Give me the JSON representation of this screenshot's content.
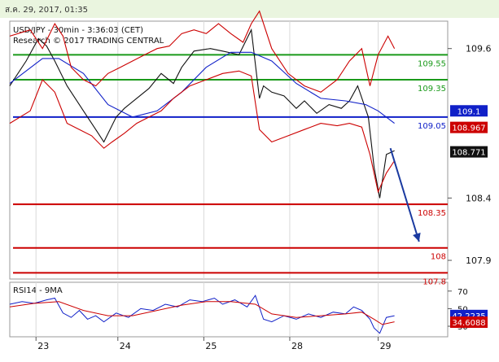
{
  "header": {
    "timestamp": "ส.ค. 29, 2017, 01:35"
  },
  "chart_data": {
    "type": "line",
    "instrument_label": "USD/JPY - 30min - 3:36:03 (CET)",
    "copyright": "Research © 2017 TRADING CENTRAL",
    "price_axis": {
      "range": [
        107.75,
        109.82
      ],
      "ticks": [
        "109.6",
        "108.4",
        "107.9"
      ]
    },
    "x_axis": {
      "range": [
        0,
        5.35
      ],
      "labels": [
        {
          "x": 0.4,
          "text": "23"
        },
        {
          "x": 1.4,
          "text": "24"
        },
        {
          "x": 2.45,
          "text": "25"
        },
        {
          "x": 3.5,
          "text": "28"
        },
        {
          "x": 4.58,
          "text": "29"
        }
      ]
    },
    "levels": [
      {
        "value": 109.55,
        "label": "109.55",
        "color": "#1a9a1a"
      },
      {
        "value": 109.35,
        "label": "109.35",
        "color": "#1a9a1a"
      },
      {
        "value": 109.05,
        "label": "109.05",
        "color": "#1020c8"
      },
      {
        "value": 108.35,
        "label": "108.35",
        "color": "#cc0000"
      },
      {
        "value": 108.0,
        "label": "108",
        "color": "#cc0000"
      },
      {
        "value": 107.8,
        "label": "107.8",
        "color": "#cc0000"
      }
    ],
    "price_tags": [
      {
        "value": 109.1,
        "label": "109.1",
        "color": "#1020c8"
      },
      {
        "value": 108.967,
        "label": "108.967",
        "color": "#cc0000"
      },
      {
        "value": 108.771,
        "label": "108.771",
        "color": "#111111"
      }
    ],
    "series": [
      {
        "color": "#111111",
        "x": [
          0.0,
          0.2,
          0.35,
          0.45,
          0.55,
          0.7,
          0.9,
          1.05,
          1.15,
          1.3,
          1.4,
          1.55,
          1.7,
          1.85,
          2.0,
          2.1,
          2.25,
          2.45,
          2.6,
          2.8,
          2.95,
          3.05,
          3.1,
          3.2,
          3.35,
          3.5,
          3.6,
          3.75,
          3.9,
          4.05,
          4.15,
          4.25,
          4.38,
          4.45,
          4.52,
          4.6,
          4.7
        ],
        "y": [
          109.3,
          109.5,
          109.68,
          109.62,
          109.5,
          109.3,
          109.1,
          108.95,
          108.85,
          109.05,
          109.12,
          109.2,
          109.28,
          109.4,
          109.32,
          109.45,
          109.58,
          109.6,
          109.58,
          109.55,
          109.75,
          109.2,
          109.3,
          109.25,
          109.22,
          109.12,
          109.18,
          109.08,
          109.15,
          109.12,
          109.18,
          109.3,
          109.05,
          108.65,
          108.4,
          108.75,
          108.78
        ]
      },
      {
        "color": "#1020c8",
        "x": [
          0.0,
          0.4,
          0.6,
          0.9,
          1.2,
          1.5,
          1.8,
          2.1,
          2.4,
          2.7,
          2.95,
          3.2,
          3.5,
          3.8,
          4.1,
          4.35,
          4.5,
          4.7
        ],
        "y": [
          109.32,
          109.52,
          109.52,
          109.4,
          109.15,
          109.05,
          109.1,
          109.25,
          109.45,
          109.57,
          109.57,
          109.5,
          109.32,
          109.2,
          109.18,
          109.15,
          109.1,
          109.0
        ]
      },
      {
        "color": "#cc0000",
        "x": [
          0.0,
          0.25,
          0.4,
          0.55,
          0.65,
          0.75,
          0.9,
          1.05,
          1.2,
          1.35,
          1.5,
          1.65,
          1.8,
          1.95,
          2.1,
          2.25,
          2.4,
          2.55,
          2.7,
          2.85,
          2.95,
          3.05,
          3.2,
          3.4,
          3.6,
          3.8,
          4.0,
          4.15,
          4.3,
          4.4,
          4.5,
          4.62,
          4.7
        ],
        "y": [
          109.7,
          109.75,
          109.6,
          109.8,
          109.7,
          109.45,
          109.35,
          109.3,
          109.4,
          109.45,
          109.5,
          109.55,
          109.6,
          109.62,
          109.72,
          109.75,
          109.72,
          109.8,
          109.72,
          109.65,
          109.8,
          109.9,
          109.6,
          109.4,
          109.3,
          109.25,
          109.35,
          109.5,
          109.6,
          109.3,
          109.55,
          109.7,
          109.6
        ]
      },
      {
        "color": "#cc0000",
        "x": [
          0.0,
          0.25,
          0.4,
          0.55,
          0.7,
          0.85,
          1.0,
          1.15,
          1.25,
          1.4,
          1.55,
          1.7,
          1.85,
          2.0,
          2.2,
          2.4,
          2.6,
          2.8,
          2.95,
          3.05,
          3.2,
          3.4,
          3.6,
          3.8,
          4.0,
          4.15,
          4.3,
          4.4,
          4.5,
          4.6,
          4.7
        ],
        "y": [
          109.0,
          109.1,
          109.35,
          109.25,
          109.0,
          108.95,
          108.9,
          108.8,
          108.85,
          108.92,
          109.0,
          109.05,
          109.1,
          109.2,
          109.3,
          109.35,
          109.4,
          109.42,
          109.38,
          108.95,
          108.85,
          108.9,
          108.95,
          109.0,
          108.98,
          109.0,
          108.97,
          108.75,
          108.45,
          108.6,
          108.7
        ]
      }
    ],
    "projection": {
      "color": "#1a3aa0",
      "from": {
        "x": 4.65,
        "y": 108.8
      },
      "to": {
        "x": 5.0,
        "y": 108.05
      }
    },
    "rsi": {
      "label": "RSI14 - 9MA",
      "range": [
        18,
        80
      ],
      "ticks": [
        "70",
        "50",
        "30"
      ],
      "tags": [
        {
          "value": 42.2235,
          "label": "42.2235",
          "color": "#1020c8"
        },
        {
          "value": 34.6088,
          "label": "34.6088",
          "color": "#cc0000"
        }
      ],
      "series": [
        {
          "color": "#1020c8",
          "x": [
            0.0,
            0.15,
            0.3,
            0.45,
            0.55,
            0.65,
            0.75,
            0.85,
            0.95,
            1.05,
            1.15,
            1.3,
            1.45,
            1.6,
            1.75,
            1.9,
            2.05,
            2.2,
            2.35,
            2.5,
            2.6,
            2.75,
            2.9,
            3.0,
            3.1,
            3.2,
            3.35,
            3.5,
            3.65,
            3.8,
            3.95,
            4.1,
            4.2,
            4.3,
            4.4,
            4.45,
            4.52,
            4.6,
            4.7
          ],
          "y": [
            55,
            58,
            56,
            60,
            62,
            45,
            40,
            48,
            38,
            42,
            35,
            45,
            40,
            50,
            48,
            55,
            52,
            60,
            58,
            62,
            55,
            60,
            52,
            65,
            38,
            35,
            42,
            38,
            44,
            40,
            46,
            44,
            52,
            48,
            38,
            28,
            22,
            40,
            42
          ]
        },
        {
          "color": "#cc0000",
          "x": [
            0.0,
            0.3,
            0.6,
            0.9,
            1.2,
            1.5,
            1.8,
            2.1,
            2.4,
            2.7,
            3.0,
            3.2,
            3.5,
            3.8,
            4.1,
            4.3,
            4.45,
            4.55,
            4.7
          ],
          "y": [
            52,
            56,
            58,
            48,
            42,
            42,
            48,
            54,
            58,
            58,
            55,
            44,
            40,
            42,
            44,
            46,
            38,
            32,
            35
          ]
        }
      ]
    }
  }
}
